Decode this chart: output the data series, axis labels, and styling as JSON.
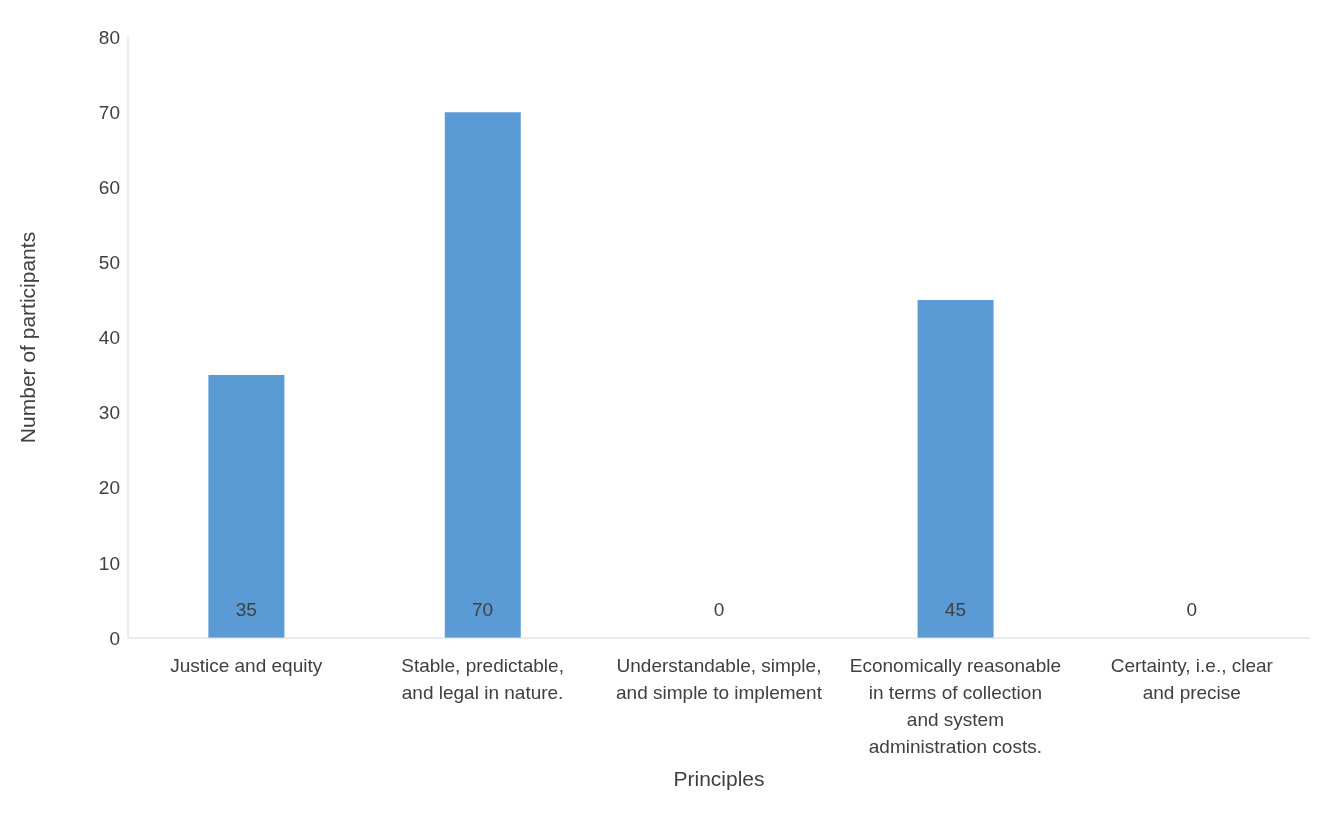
{
  "chart_data": {
    "type": "bar",
    "xlabel": "Principles",
    "ylabel": "Number of participants",
    "categories": [
      "Justice and equity",
      "Stable, predictable, and legal in nature.",
      "Understandable, simple, and simple to implement",
      "Economically reasonable in terms of collection and system administration costs.",
      "Certainty, i.e., clear and precise"
    ],
    "values": [
      35,
      70,
      0,
      45,
      0
    ],
    "color": "#5b9bd5",
    "ylim": [
      0,
      80
    ],
    "yticks": [
      0,
      10,
      20,
      30,
      40,
      50,
      60,
      70,
      80
    ],
    "grid": false,
    "data_labels": true
  }
}
